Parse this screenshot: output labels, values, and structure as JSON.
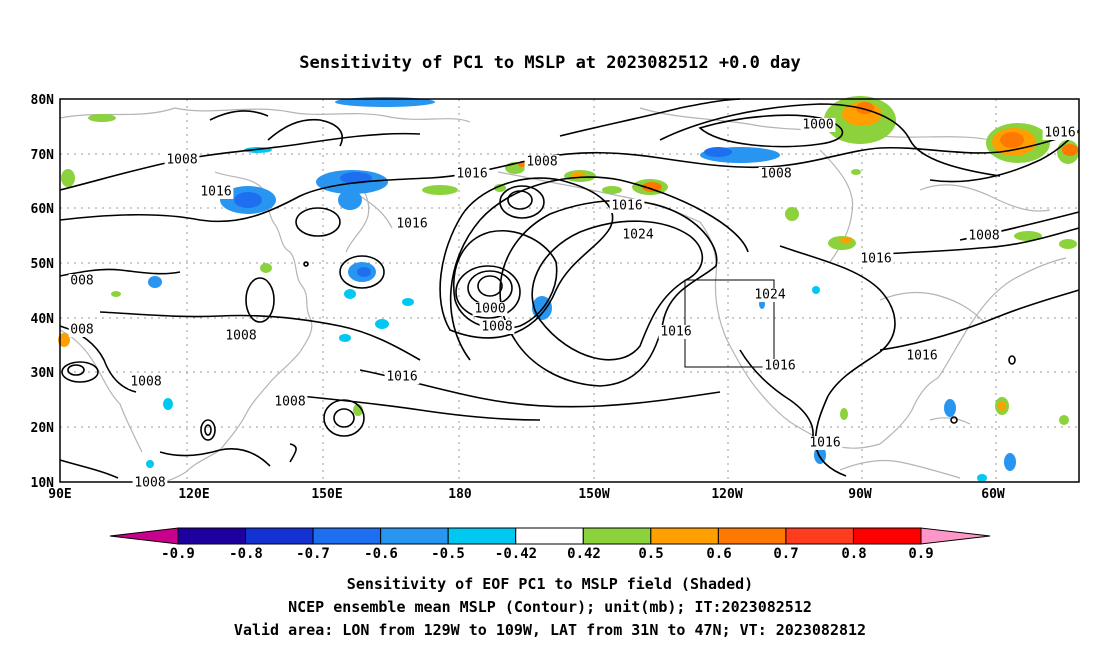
{
  "title": "Sensitivity of PC1 to MSLP at 2023082512 +0.0 day",
  "map": {
    "lat_labels": [
      "80N",
      "70N",
      "60N",
      "50N",
      "40N",
      "30N",
      "20N",
      "10N"
    ],
    "lon_labels": [
      "90E",
      "120E",
      "150E",
      "180",
      "150W",
      "120W",
      "90W",
      "60W"
    ],
    "contour_labels": [
      {
        "text": "1008",
        "region": "north-pacific-west"
      },
      {
        "text": "1016",
        "region": "sea-of-okhotsk"
      },
      {
        "text": "1016",
        "region": "bering-sea"
      },
      {
        "text": "1008",
        "region": "bering-sea"
      },
      {
        "text": "1000",
        "region": "arctic-canada"
      },
      {
        "text": "1008",
        "region": "hudson-bay"
      },
      {
        "text": "1016",
        "region": "northeast-atlantic"
      },
      {
        "text": "1016",
        "region": "kamchatka"
      },
      {
        "text": "1016",
        "region": "gulf-of-alaska"
      },
      {
        "text": "1024",
        "region": "northeast-pacific-high"
      },
      {
        "text": "1000",
        "region": "aleutian-low"
      },
      {
        "text": "1008",
        "region": "aleutian-low"
      },
      {
        "text": "1016",
        "region": "california-coast"
      },
      {
        "text": "1024",
        "region": "rocky-mountains"
      },
      {
        "text": "1016",
        "region": "great-lakes"
      },
      {
        "text": "1008",
        "region": "labrador"
      },
      {
        "text": "1016",
        "region": "baja-california"
      },
      {
        "text": "1016",
        "region": "western-atlantic"
      },
      {
        "text": "1016",
        "region": "subtropical-pacific"
      },
      {
        "text": "1008",
        "region": "east-asia"
      },
      {
        "text": "1008",
        "region": "philippine-sea"
      },
      {
        "text": "1008",
        "region": "south-china-sea"
      },
      {
        "text": "1016",
        "region": "central-america"
      },
      {
        "text": "008",
        "region": "western-edge"
      },
      {
        "text": "008",
        "region": "western-edge"
      },
      {
        "text": "1008",
        "region": "bay-of-bengal"
      }
    ],
    "valid_box": {
      "lon_from": "129W",
      "lon_to": "109W",
      "lat_from": "31N",
      "lat_to": "47N"
    }
  },
  "colorbar": {
    "labels": [
      "-0.9",
      "-0.8",
      "-0.7",
      "-0.6",
      "-0.5",
      "-0.42",
      "0.42",
      "0.5",
      "0.6",
      "0.7",
      "0.8",
      "0.9"
    ],
    "colors": {
      "below_min": "#c8008c",
      "bins": [
        "#1e00a0",
        "#1432d2",
        "#1e6ef0",
        "#2896f0",
        "#00c8f0",
        "#ffffff",
        "#8cd23c",
        "#ffa000",
        "#ff7800",
        "#ff3c1e",
        "#ff0000"
      ],
      "above_max": "#ff96c8"
    }
  },
  "captions": [
    "Sensitivity of EOF PC1 to MSLP field (Shaded)",
    "NCEP ensemble mean MSLP (Contour); unit(mb); IT:2023082512",
    "Valid area: LON from 129W to 109W, LAT from 31N to 47N; VT: 2023082812"
  ]
}
